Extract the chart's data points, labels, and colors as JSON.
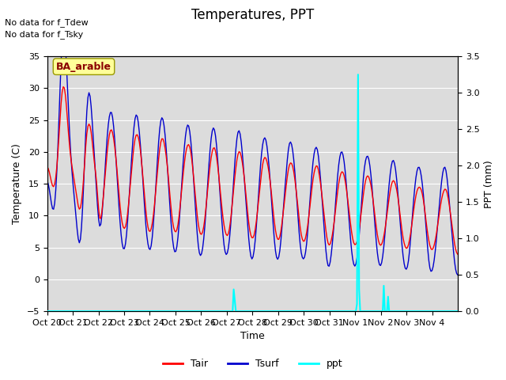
{
  "title": "Temperatures, PPT",
  "xlabel": "Time",
  "ylabel_left": "Temperature (C)",
  "ylabel_right": "PPT (mm)",
  "annotation_text": "BA_arable",
  "no_data_lines": [
    "No data for f_Tdew",
    "No data for f_Tsky"
  ],
  "legend_entries": [
    "Tair",
    "Tsurf",
    "ppt"
  ],
  "tair_color": "#ff0000",
  "tsurf_color": "#0000cd",
  "ppt_color": "#00ffff",
  "ylim_left": [
    -5,
    35
  ],
  "ylim_right": [
    0.0,
    3.5
  ],
  "background_color": "#ffffff",
  "plot_bg_color": "#dcdcdc",
  "xtick_labels": [
    "Oct 20",
    "Oct 21",
    "Oct 22",
    "Oct 23",
    "Oct 24",
    "Oct 25",
    "Oct 26",
    "Oct 27",
    "Oct 28",
    "Oct 29",
    "Oct 30",
    "Oct 31",
    "Nov 1",
    "Nov 2",
    "Nov 3",
    "Nov 4"
  ],
  "n_days": 16,
  "title_fontsize": 12,
  "axis_label_fontsize": 9,
  "tick_fontsize": 8
}
